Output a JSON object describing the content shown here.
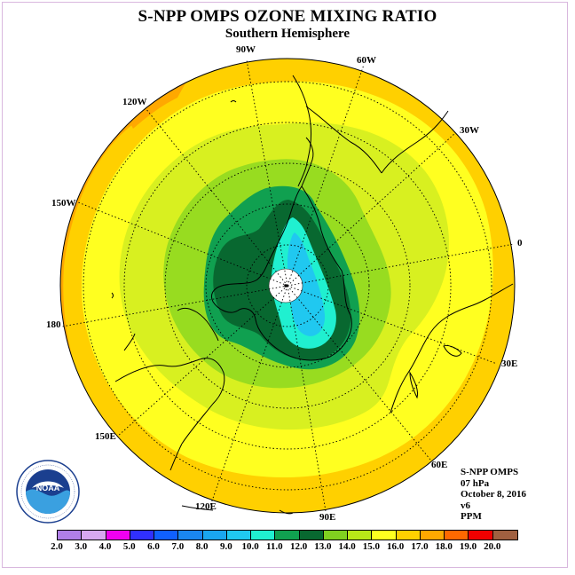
{
  "title": "S-NPP OMPS OZONE MIXING RATIO",
  "subtitle": "Southern Hemisphere",
  "longitude_labels": [
    "90W",
    "60W",
    "30W",
    "0",
    "30E",
    "60E",
    "90E",
    "120E",
    "150E",
    "180",
    "150W",
    "120W"
  ],
  "info": {
    "instrument": "S-NPP OMPS",
    "pressure": "07 hPa",
    "date": "October 8, 2016",
    "version": "v6",
    "units": "PPM"
  },
  "logo_text": "NOAA",
  "logo_ring_text": "NATIONAL OCEANIC AND ATMOSPHERIC ADMINISTRATION · U.S. DEPARTMENT OF COMMERCE",
  "colorbar": {
    "ticks": [
      "2.0",
      "3.0",
      "4.0",
      "5.0",
      "6.0",
      "7.0",
      "8.0",
      "9.0",
      "10.0",
      "11.0",
      "12.0",
      "13.0",
      "14.0",
      "15.0",
      "16.0",
      "17.0",
      "18.0",
      "19.0",
      "20.0"
    ],
    "colors": [
      "#b07fe8",
      "#d8a8f0",
      "#f000f0",
      "#3030ff",
      "#1060ff",
      "#1a86f0",
      "#1aa6f0",
      "#20c8f0",
      "#20f0d0",
      "#10a050",
      "#086830",
      "#80d020",
      "#b8e818",
      "#ffff20",
      "#ffd000",
      "#ffa800",
      "#ff6800",
      "#f00000",
      "#a06040"
    ]
  }
}
